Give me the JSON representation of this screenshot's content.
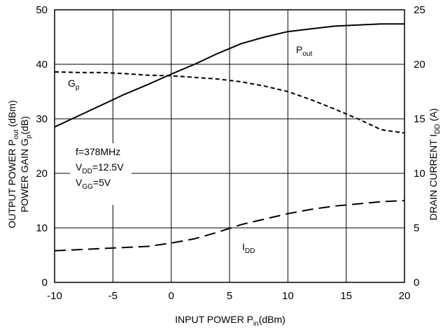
{
  "chart_data": {
    "type": "line",
    "x": [
      -10,
      -8,
      -6,
      -4,
      -2,
      0,
      2,
      4,
      6,
      8,
      10,
      12,
      14,
      16,
      18,
      20
    ],
    "x_ticks": [
      "-10",
      "-5",
      "0",
      "5",
      "10",
      "15",
      "20"
    ],
    "y_left_ticks": [
      "0",
      "10",
      "20",
      "30",
      "40",
      "50"
    ],
    "y_right_ticks": [
      "0",
      "5",
      "10",
      "15",
      "20",
      "25"
    ],
    "xlim": [
      -10,
      20
    ],
    "ylim_left": [
      0,
      50
    ],
    "ylim_right": [
      0,
      25
    ],
    "grid": true,
    "xlabel": {
      "main": "INPUT POWER P",
      "sub": "in",
      "tail": "(dBm)"
    },
    "ylabel_left": {
      "line1": {
        "main": "OUTPUT POWER P",
        "sub": "out",
        "tail": " (dBm)"
      },
      "line2": {
        "main": "POWER GAIN G",
        "sub": "p",
        "tail": "(dB)"
      }
    },
    "ylabel_right": {
      "main": "DRAIN CURRENT I",
      "sub": "DD",
      "tail": " (A)"
    },
    "series": [
      {
        "name": "Pout",
        "label_main": "P",
        "label_sub": "out",
        "axis": "left",
        "style": "solid",
        "values": [
          28.5,
          30.5,
          32.5,
          34.5,
          36.3,
          38.2,
          40.0,
          42.0,
          43.8,
          45.0,
          46.0,
          46.5,
          47.0,
          47.2,
          47.4,
          47.4
        ]
      },
      {
        "name": "Gp",
        "label_main": "G",
        "label_sub": "p",
        "axis": "left",
        "style": "short-dash",
        "values": [
          38.6,
          38.5,
          38.5,
          38.3,
          38.0,
          37.9,
          37.6,
          37.3,
          36.8,
          36.0,
          35.0,
          33.5,
          31.8,
          30.0,
          28.0,
          27.4
        ]
      },
      {
        "name": "IDD",
        "label_main": "I",
        "label_sub": "DD",
        "axis": "right",
        "style": "long-dash",
        "values": [
          2.9,
          3.0,
          3.1,
          3.2,
          3.3,
          3.6,
          4.0,
          4.6,
          5.3,
          5.8,
          6.3,
          6.7,
          7.0,
          7.2,
          7.4,
          7.5
        ]
      }
    ],
    "annotation": {
      "freq": "f=378MHz",
      "vdd_main": "V",
      "vdd_sub": "DD",
      "vdd_tail": "=12.5V",
      "vgg_main": "V",
      "vgg_sub": "GG",
      "vgg_tail": "=5V"
    }
  }
}
